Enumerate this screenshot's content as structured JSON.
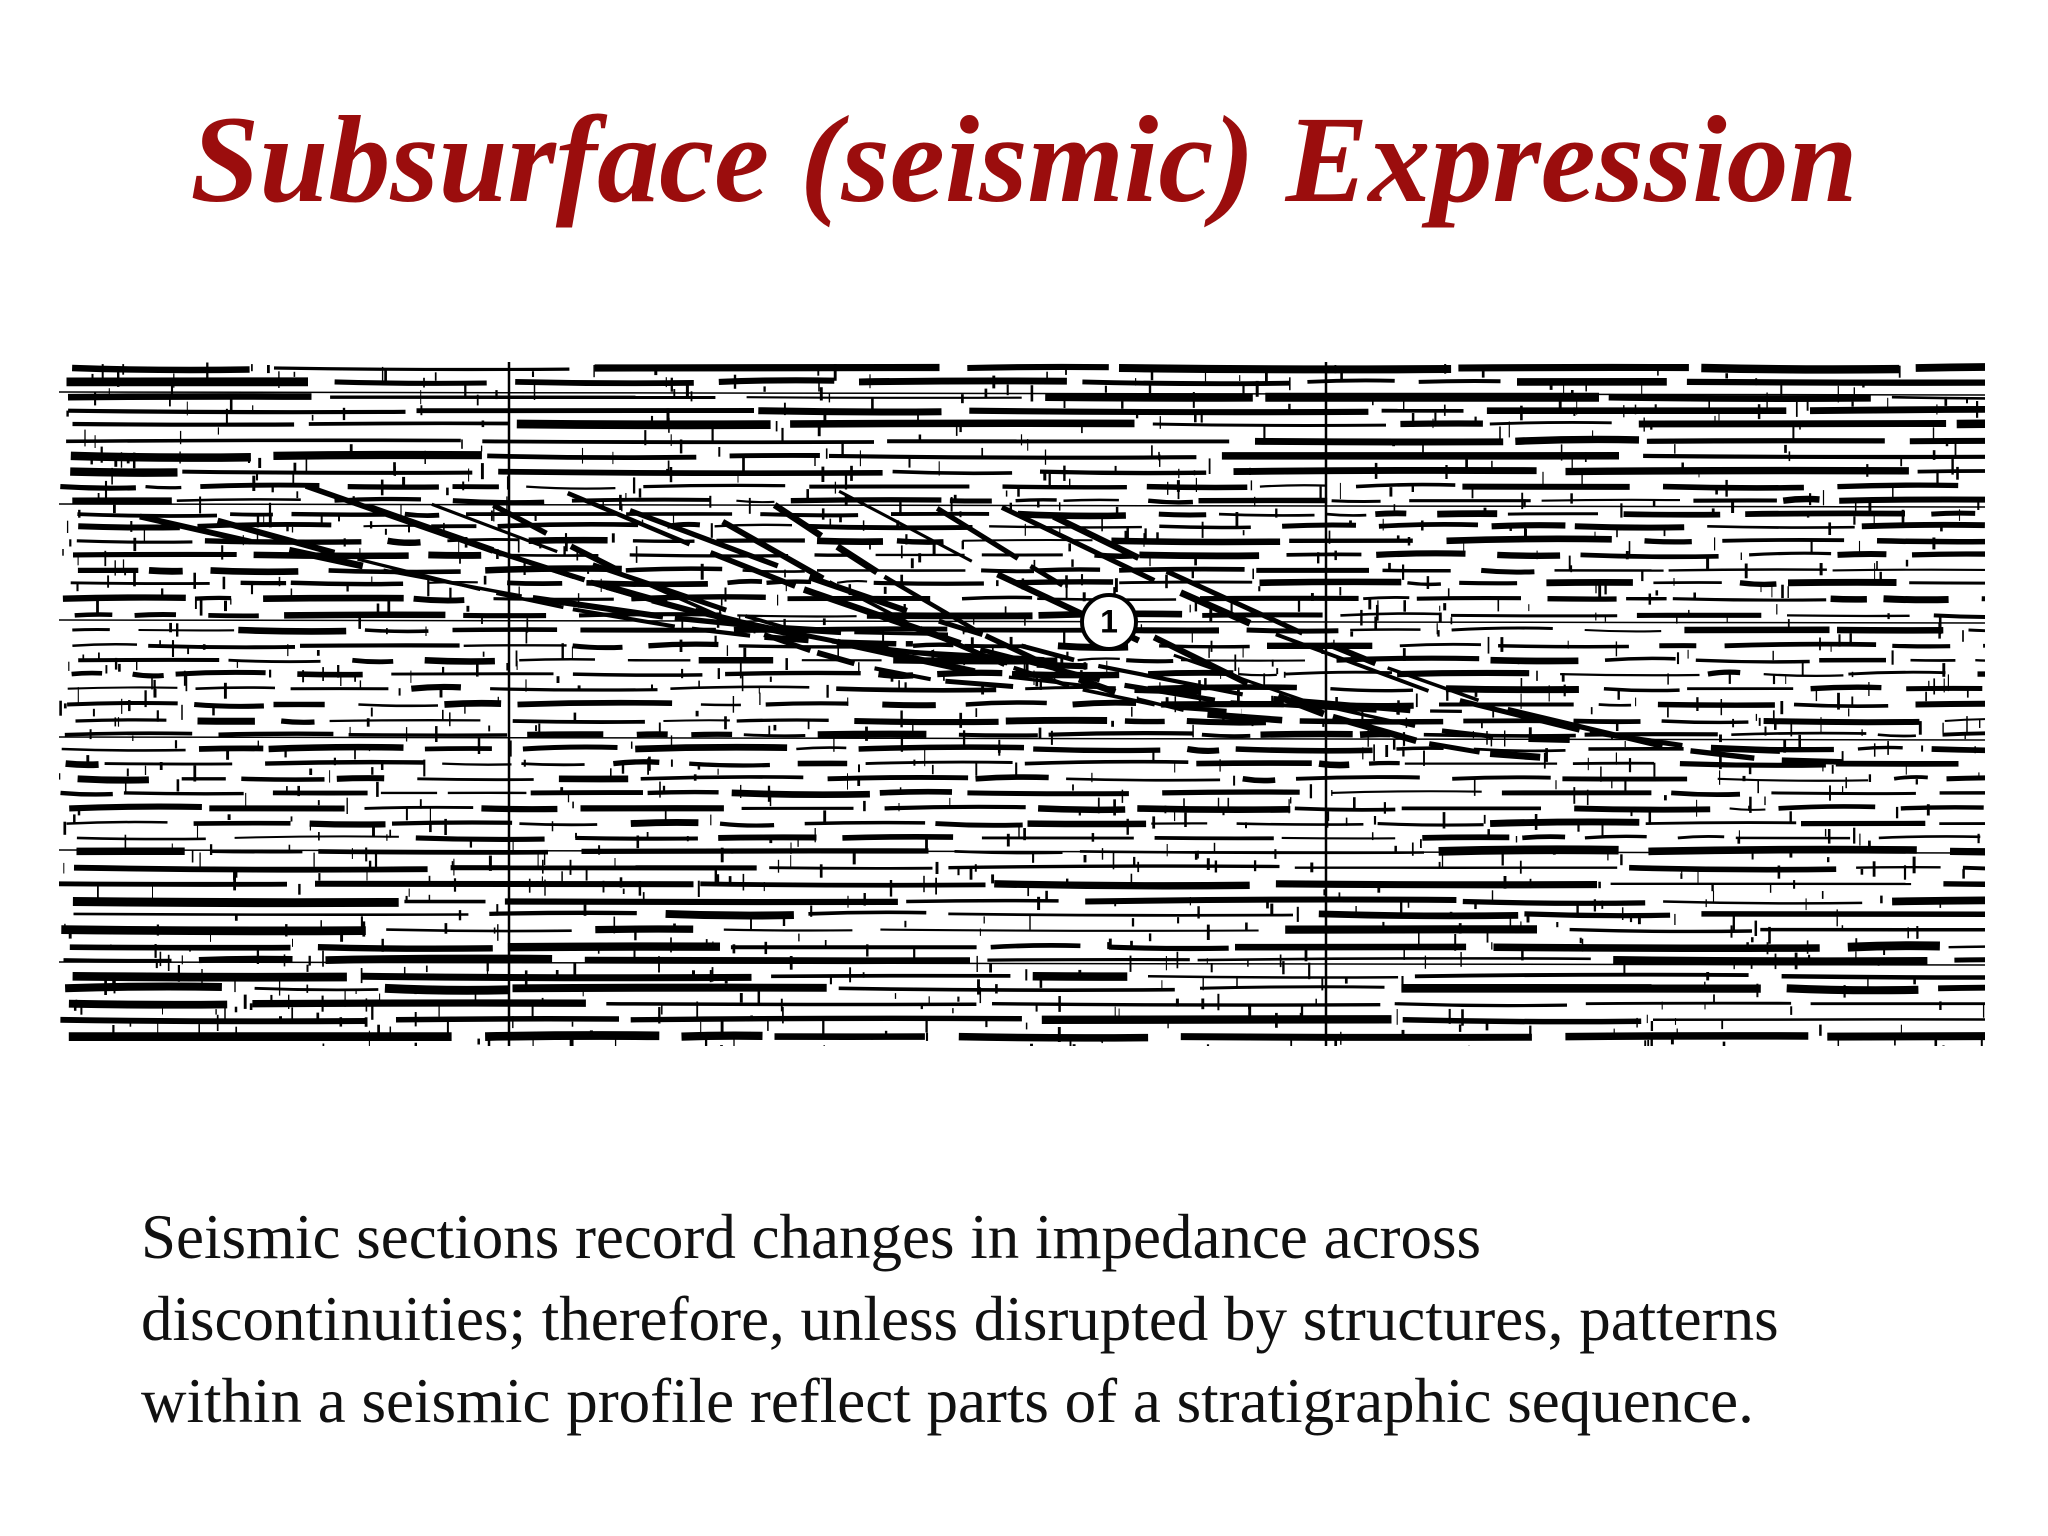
{
  "title": "Subsurface (seismic) Expression",
  "figure": {
    "label": "1"
  },
  "body": {
    "lines": [
      "Seismic sections record changes in impedance across",
      "discontinuities; therefore, unless disrupted by structures, patterns",
      "within a seismic profile reflect parts of a stratigraphic sequence."
    ]
  }
}
